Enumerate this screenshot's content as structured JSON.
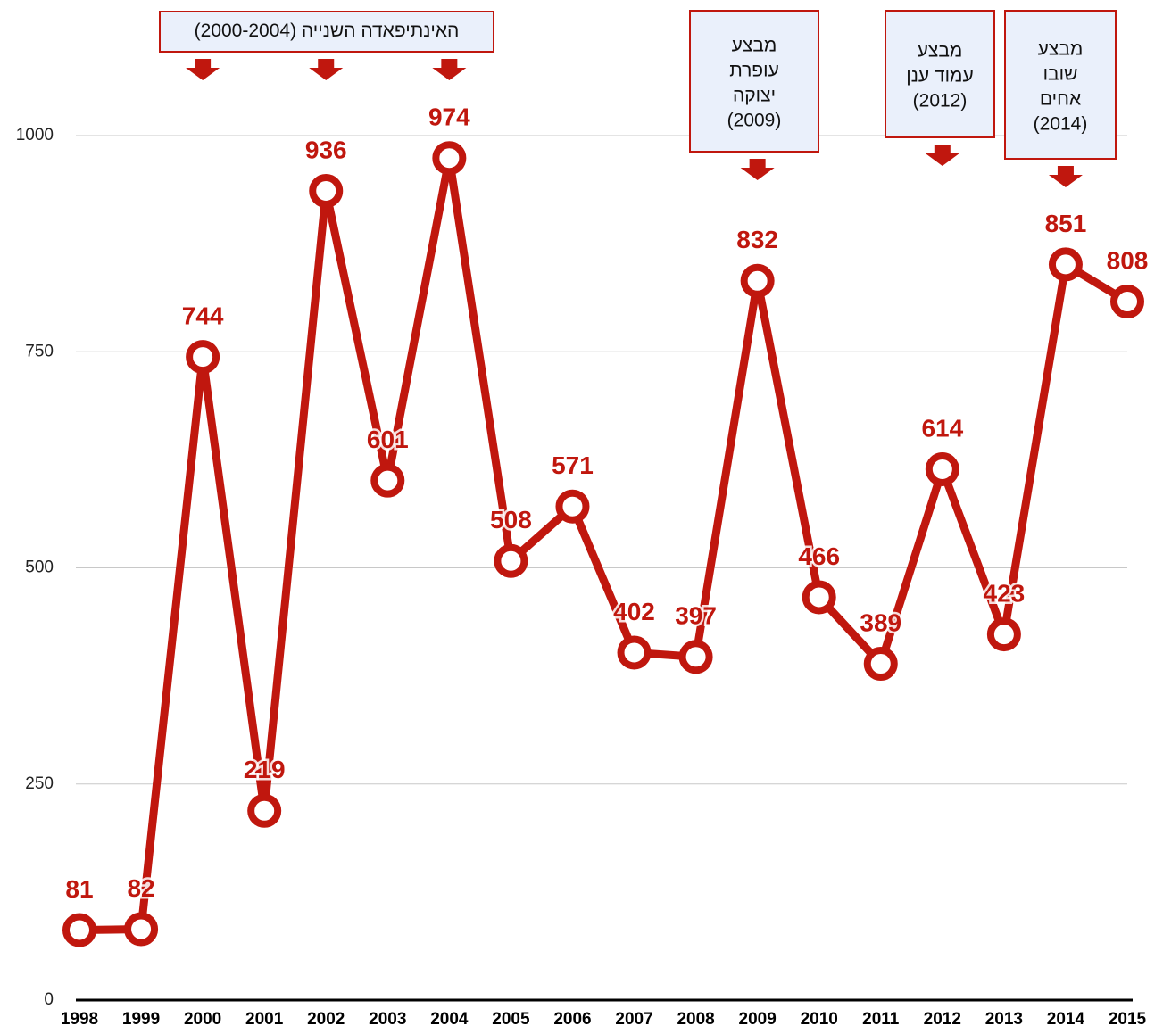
{
  "chart_data": {
    "type": "line",
    "categories": [
      "1998",
      "1999",
      "2000",
      "2001",
      "2002",
      "2003",
      "2004",
      "2005",
      "2006",
      "2007",
      "2008",
      "2009",
      "2010",
      "2011",
      "2012",
      "2013",
      "2014",
      "2015"
    ],
    "series": [
      {
        "color": "#c0170e",
        "values": [
          81,
          82,
          744,
          219,
          936,
          601,
          974,
          508,
          571,
          402,
          397,
          832,
          466,
          389,
          614,
          423,
          851,
          808
        ]
      }
    ],
    "ylim": [
      0,
      1000
    ],
    "yticks": [
      0,
      250,
      500,
      750,
      1000
    ],
    "grid": true,
    "annotations": [
      {
        "lines": [
          "האינתיפאדה השנייה (2000-2004)"
        ],
        "targets": [
          "2000",
          "2002",
          "2004"
        ]
      },
      {
        "lines": [
          "מבצע",
          "עופרת",
          "יצוקה",
          "(2009)"
        ],
        "targets": [
          "2009"
        ]
      },
      {
        "lines": [
          "מבצע",
          "עמוד ענן",
          "(2012)"
        ],
        "targets": [
          "2012"
        ]
      },
      {
        "lines": [
          "מבצע",
          "שובו",
          "אחים",
          "(2014)"
        ],
        "targets": [
          "2014"
        ]
      }
    ]
  }
}
